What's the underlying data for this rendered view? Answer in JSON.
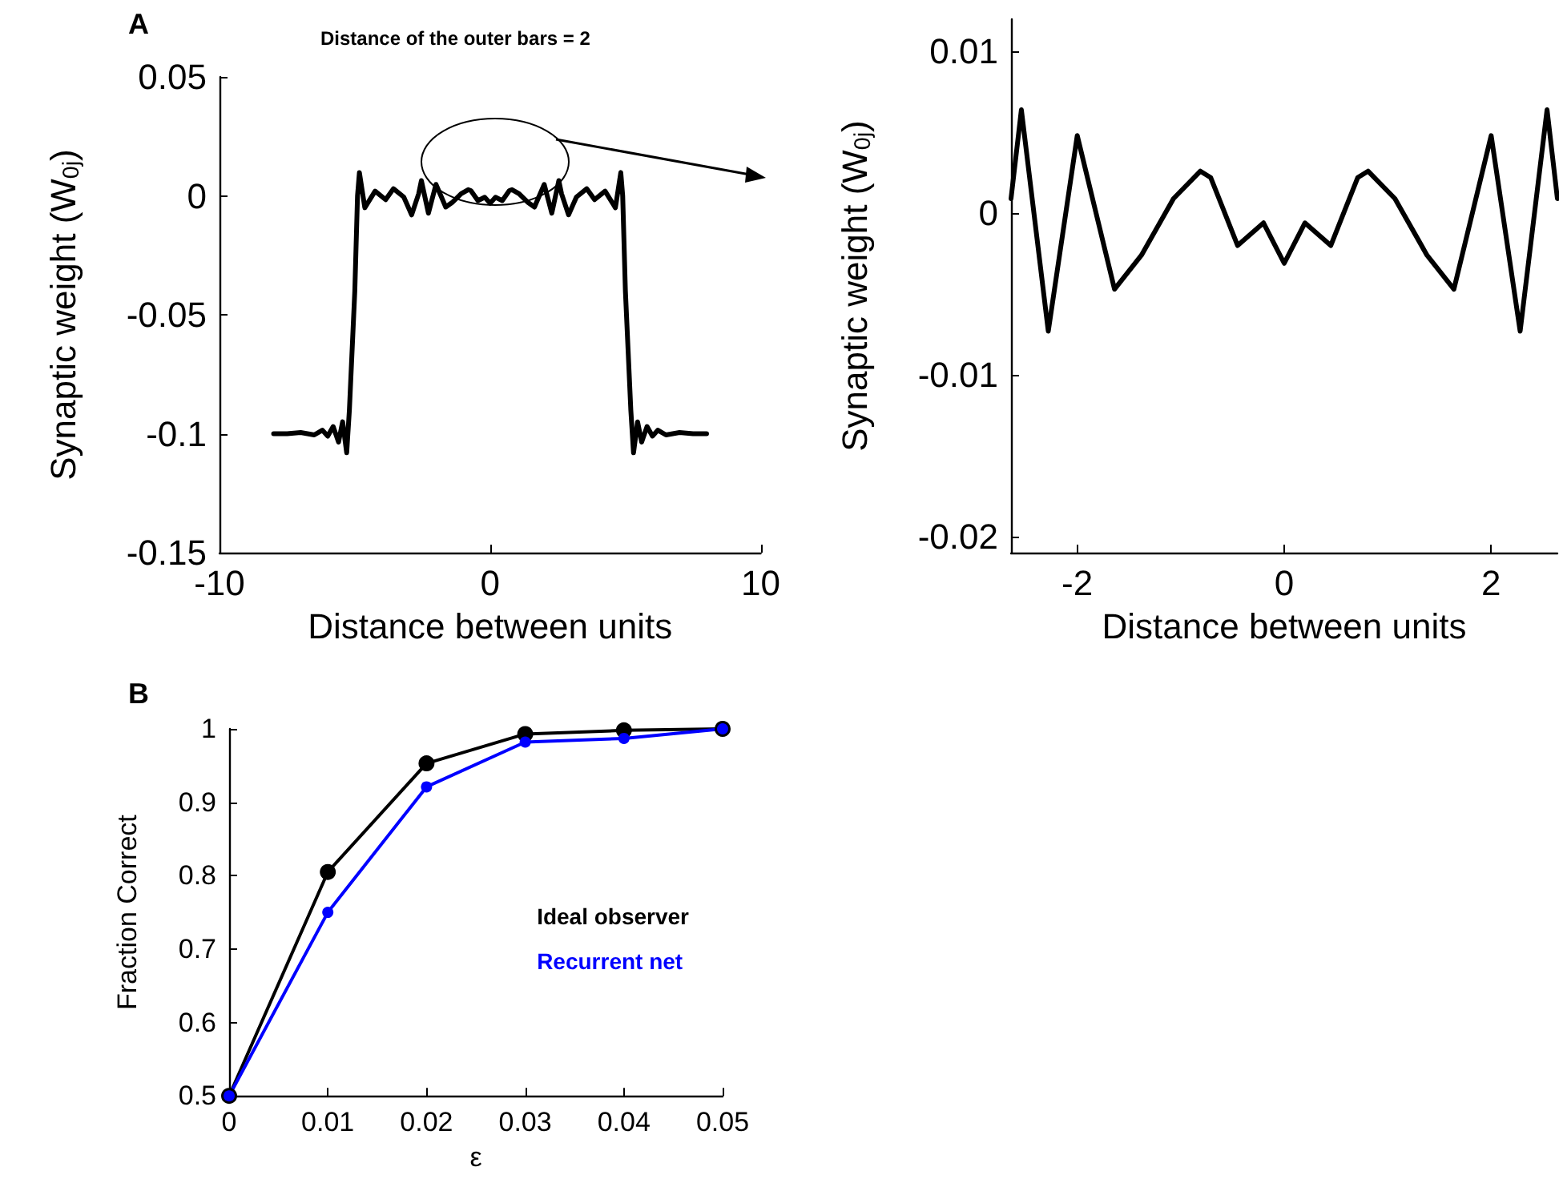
{
  "chart_data": [
    {
      "type": "line",
      "xlabel": "Distance between units",
      "ylabel": "Synaptic weight (W$_{0j}$)",
      "annotations": [
        "A",
        "Distance of the outer bars = 2"
      ],
      "xlim": [
        -10,
        10
      ],
      "xticks": [
        -10,
        0,
        10
      ],
      "ylim": [
        -0.15,
        0.05
      ],
      "yticks": [
        -0.15,
        -0.1,
        -0.05,
        0,
        0.05
      ],
      "grid": false,
      "legend": false,
      "marker": "none",
      "line_style": "solid",
      "series": [
        {
          "color": "#000000",
          "x": [
            -8,
            -7.5,
            -7,
            -6.5,
            -6.2,
            -6,
            -5.8,
            -5.6,
            -5.45,
            -5.3,
            -5.2,
            -5,
            -4.9,
            -4.83,
            -4.63,
            -4.25,
            -3.86,
            -3.57,
            -3.19,
            -2.9,
            -2.64,
            -2.54,
            -2.28,
            -2,
            -1.64,
            -1.38,
            -1.07,
            -0.81,
            -0.71,
            -0.45,
            -0.2,
            0,
            0.2,
            0.45,
            0.71,
            0.81,
            1.07,
            1.38,
            1.64,
            2,
            2.28,
            2.54,
            2.64,
            2.9,
            3.19,
            3.57,
            3.86,
            4.25,
            4.63,
            4.83,
            4.9,
            5,
            5.2,
            5.3,
            5.45,
            5.6,
            5.8,
            6,
            6.2,
            6.5,
            7,
            7.5,
            8
          ],
          "values": [
            -0.1,
            -0.1,
            -0.0995,
            -0.1005,
            -0.0985,
            -0.101,
            -0.097,
            -0.1035,
            -0.095,
            -0.108,
            -0.09,
            -0.04,
            0,
            0.0098,
            -0.005,
            0.002,
            -0.0016,
            0.003,
            -0.0005,
            -0.008,
            0.0009,
            0.0064,
            -0.0073,
            0.0048,
            -0.0047,
            -0.0026,
            0.0009,
            0.0026,
            0.0022,
            -0.002,
            -0.0006,
            -0.0031,
            -0.0006,
            -0.002,
            0.0022,
            0.0026,
            0.0009,
            -0.0026,
            -0.0047,
            0.0048,
            -0.0073,
            0.0064,
            0.0009,
            -0.008,
            -0.0005,
            0.003,
            -0.0016,
            0.002,
            -0.005,
            0.0098,
            0,
            -0.04,
            -0.09,
            -0.108,
            -0.095,
            -0.1035,
            -0.097,
            -0.101,
            -0.0985,
            -0.1005,
            -0.0995,
            -0.1,
            -0.1
          ]
        }
      ]
    },
    {
      "type": "line",
      "xlabel": "Distance between units",
      "ylabel": "Synaptic weight (W$_{0j}$)",
      "xlim": [
        -2.64,
        2.64
      ],
      "xticks": [
        -2,
        0,
        2
      ],
      "ylim": [
        -0.021,
        0.012
      ],
      "yticks": [
        -0.02,
        -0.01,
        0,
        0.01
      ],
      "grid": false,
      "legend": false,
      "marker": "none",
      "line_style": "solid",
      "series": [
        {
          "color": "#000000",
          "x": [
            -2.64,
            -2.54,
            -2.28,
            -2,
            -1.64,
            -1.38,
            -1.07,
            -0.81,
            -0.71,
            -0.45,
            -0.2,
            0,
            0.2,
            0.45,
            0.71,
            0.81,
            1.07,
            1.38,
            1.64,
            2,
            2.28,
            2.54,
            2.64
          ],
          "values": [
            0.0009,
            0.0064,
            -0.0073,
            0.0048,
            -0.0047,
            -0.0026,
            0.0009,
            0.0026,
            0.0022,
            -0.002,
            -0.0006,
            -0.0031,
            -0.0006,
            -0.002,
            0.0022,
            0.0026,
            0.0009,
            -0.0026,
            -0.0047,
            0.0048,
            -0.0073,
            0.0064,
            0.0009
          ]
        }
      ]
    },
    {
      "type": "line",
      "xlabel": "ε",
      "ylabel": "Fraction Correct",
      "annotations": [
        "B"
      ],
      "x": [
        0,
        0.01,
        0.02,
        0.03,
        0.04,
        0.05
      ],
      "xlim": [
        0,
        0.05
      ],
      "xticks": [
        0,
        0.01,
        0.02,
        0.03,
        0.04,
        0.05
      ],
      "ylim": [
        0.5,
        1
      ],
      "yticks": [
        0.5,
        0.6,
        0.7,
        0.8,
        0.9,
        1
      ],
      "grid": false,
      "legend": "right",
      "marker": "circle",
      "line_style": "solid",
      "series": [
        {
          "name": "Ideal observer",
          "color": "#000000",
          "values": [
            0.5,
            0.805,
            0.953,
            0.993,
            0.998,
            1.0
          ]
        },
        {
          "name": "Recurrent net",
          "color": "#0000ff",
          "values": [
            0.5,
            0.75,
            0.921,
            0.982,
            0.987,
            1.0
          ]
        }
      ]
    }
  ]
}
